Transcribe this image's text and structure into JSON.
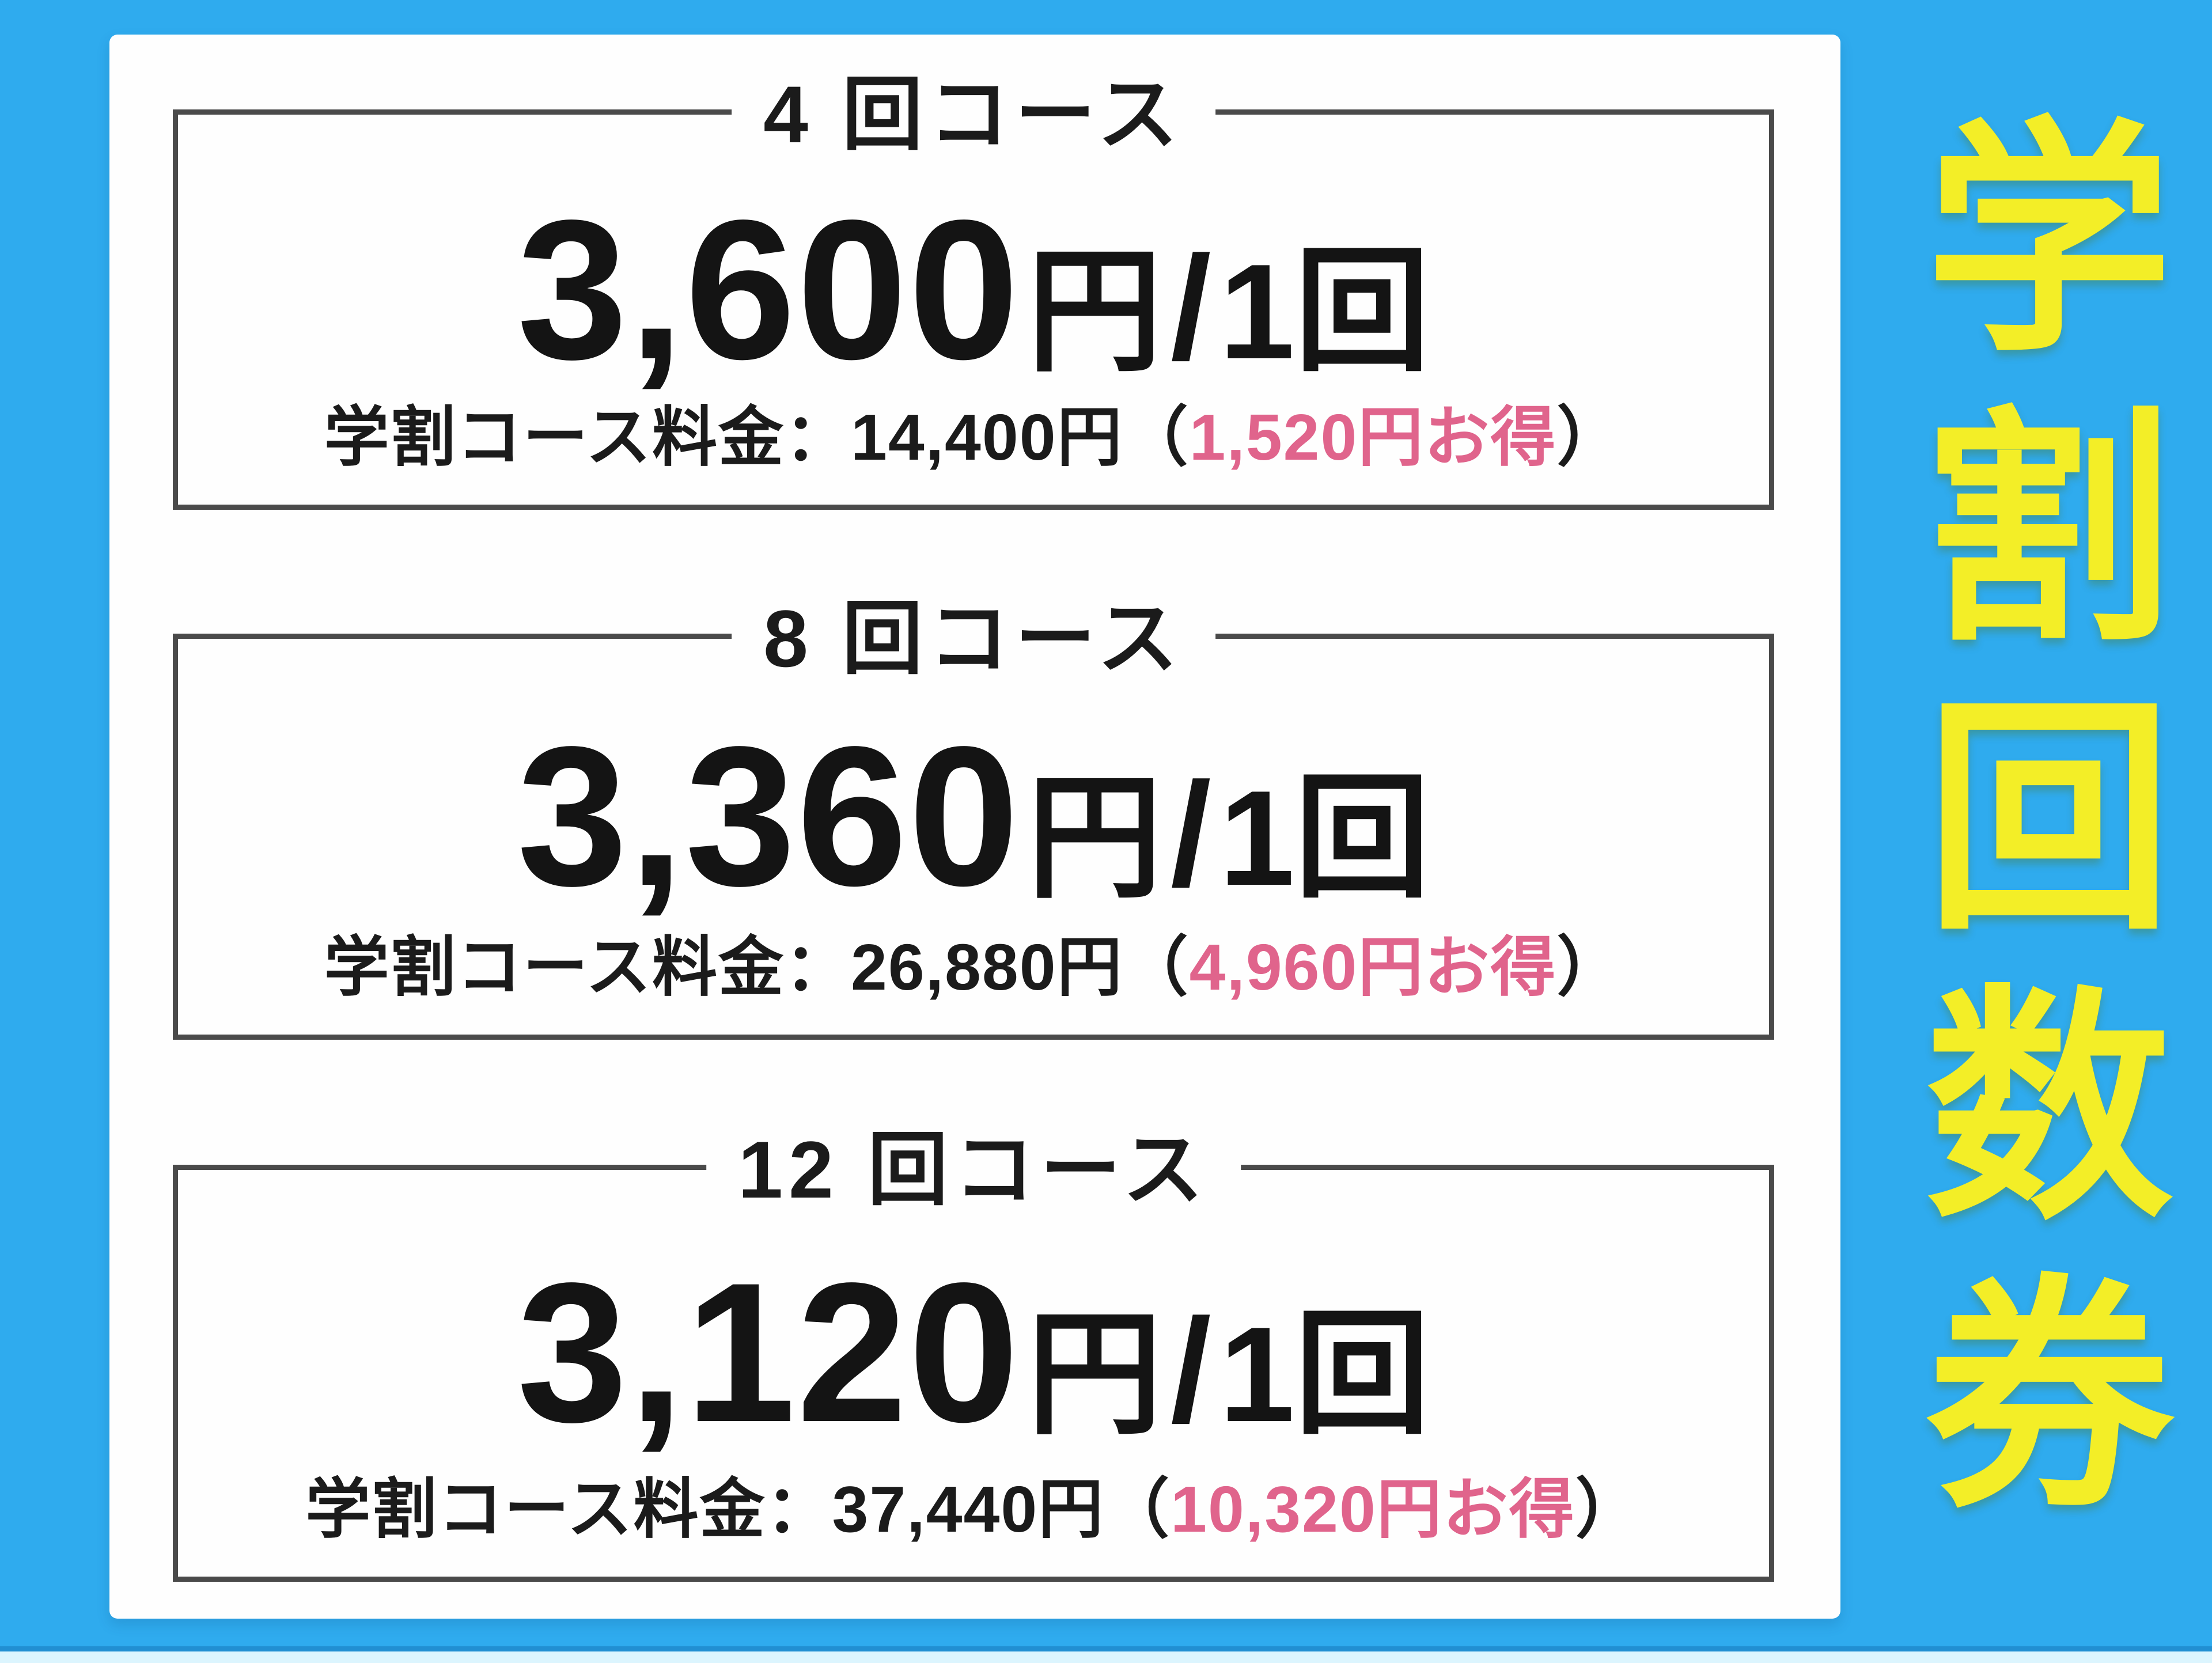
{
  "page": {
    "background_color": "#2fabee",
    "panel_color": "#fefefe",
    "box_border_color": "#4a4a4a",
    "text_color": "#1b1b1b",
    "discount_color": "#e0648c",
    "banner_color": "#f3ee27"
  },
  "side_banner": {
    "text": "学割回数券"
  },
  "courses": [
    {
      "title": "4 回コース",
      "price": "3,600",
      "unit_yen": "円",
      "per": "/",
      "per_unit": "1回",
      "note_label": "学割コース料金：",
      "note_price": "14,400円",
      "note_open": "（",
      "note_discount": "1,520円お得",
      "note_close": "）"
    },
    {
      "title": "8 回コース",
      "price": "3,360",
      "unit_yen": "円",
      "per": "/",
      "per_unit": "1回",
      "note_label": "学割コース料金：",
      "note_price": "26,880円",
      "note_open": "（",
      "note_discount": "4,960円お得",
      "note_close": "）"
    },
    {
      "title": "12 回コース",
      "price": "3,120",
      "unit_yen": "円",
      "per": "/",
      "per_unit": "1回",
      "note_label": "学割コース料金：",
      "note_price": "37,440円",
      "note_open": "（",
      "note_discount": "10,320円お得",
      "note_close": "）"
    }
  ]
}
